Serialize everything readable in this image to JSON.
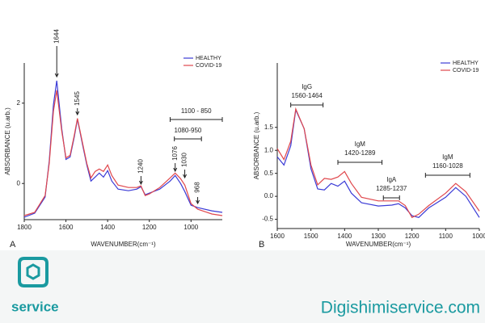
{
  "chart_data": [
    {
      "type": "line",
      "panel": "A",
      "xlabel": "WAVENUMBER(cm⁻¹)",
      "ylabel": "ABSORBANCE (u.arb.)",
      "x": [
        1800,
        1750,
        1700,
        1680,
        1660,
        1644,
        1620,
        1600,
        1580,
        1560,
        1545,
        1520,
        1500,
        1480,
        1460,
        1440,
        1420,
        1400,
        1380,
        1350,
        1300,
        1260,
        1240,
        1220,
        1200,
        1150,
        1100,
        1076,
        1050,
        1030,
        1000,
        968,
        900,
        850
      ],
      "series": [
        {
          "name": "HEALTHY",
          "color": "#3b3bd6",
          "values": [
            -0.84,
            -0.74,
            -0.34,
            0.56,
            1.96,
            2.56,
            1.36,
            0.6,
            0.66,
            1.16,
            1.6,
            0.96,
            0.46,
            0.06,
            0.16,
            0.26,
            0.16,
            0.32,
            0.06,
            -0.14,
            -0.18,
            -0.14,
            -0.08,
            -0.28,
            -0.24,
            -0.14,
            0.06,
            0.2,
            0,
            -0.2,
            -0.54,
            -0.6,
            -0.68,
            -0.72
          ]
        },
        {
          "name": "COVID-19",
          "color": "#e0474c",
          "values": [
            -0.8,
            -0.72,
            -0.3,
            0.5,
            1.8,
            2.32,
            1.3,
            0.64,
            0.7,
            1.2,
            1.62,
            1.0,
            0.5,
            0.14,
            0.3,
            0.36,
            0.3,
            0.46,
            0.2,
            -0.04,
            -0.1,
            -0.1,
            -0.06,
            -0.3,
            -0.26,
            -0.1,
            0.14,
            0.26,
            0.12,
            -0.04,
            -0.5,
            -0.64,
            -0.76,
            -0.8
          ]
        }
      ],
      "xlim": [
        1800,
        850
      ],
      "xticks": [
        1800,
        1600,
        1400,
        1200,
        1000
      ],
      "ylim": [
        -0.9,
        3
      ],
      "yticks": [
        0,
        2
      ],
      "legend": "upper right",
      "annotations": [
        {
          "text": "1644",
          "x": 1644
        },
        {
          "text": "1545",
          "x": 1545
        },
        {
          "text": "1240",
          "x": 1240
        },
        {
          "text": "1076",
          "x": 1076
        },
        {
          "text": "1030",
          "x": 1030
        },
        {
          "text": "968",
          "x": 968
        },
        {
          "text": "1100 - 850",
          "x": [
            1100,
            850
          ]
        },
        {
          "text": "1080-950",
          "x": [
            1080,
            950
          ]
        }
      ]
    },
    {
      "type": "line",
      "panel": "B",
      "xlabel": "WAVENUMBER(cm⁻¹)",
      "ylabel": "ABSORBANCE (u.arb.)",
      "x": [
        1600,
        1580,
        1560,
        1545,
        1520,
        1500,
        1480,
        1460,
        1440,
        1420,
        1400,
        1380,
        1350,
        1300,
        1260,
        1240,
        1220,
        1200,
        1180,
        1150,
        1100,
        1070,
        1040,
        1000
      ],
      "series": [
        {
          "name": "HEALTHY",
          "color": "#3b3bd6",
          "values": [
            0.86,
            0.68,
            1.1,
            1.88,
            1.47,
            0.6,
            0.16,
            0.14,
            0.28,
            0.22,
            0.33,
            0.07,
            -0.14,
            -0.21,
            -0.19,
            -0.16,
            -0.25,
            -0.42,
            -0.46,
            -0.25,
            -0.02,
            0.19,
            0.0,
            -0.46
          ]
        },
        {
          "name": "COVID-19",
          "color": "#e0474c",
          "values": [
            1.04,
            0.8,
            1.2,
            1.9,
            1.47,
            0.68,
            0.25,
            0.39,
            0.37,
            0.42,
            0.54,
            0.28,
            -0.02,
            -0.1,
            -0.1,
            -0.1,
            -0.2,
            -0.46,
            -0.39,
            -0.2,
            0.07,
            0.28,
            0.1,
            -0.32
          ]
        }
      ],
      "xlim": [
        1600,
        1000
      ],
      "xticks": [
        1600,
        1500,
        1400,
        1300,
        1200,
        1100,
        1000
      ],
      "ylim": [
        -0.7,
        2.9
      ],
      "yticks": [
        -0.5,
        {
          "value": 0,
          "label": "0.0"
        },
        0.5,
        {
          "value": 1,
          "label": "1.0"
        },
        1.5
      ],
      "legend": "upper right",
      "annotations": [
        {
          "text": [
            "IgG",
            "1560-1464"
          ],
          "x": [
            1560,
            1464
          ]
        },
        {
          "text": [
            "IgM",
            "1420-1289"
          ],
          "x": [
            1420,
            1289
          ]
        },
        {
          "text": [
            "IgA",
            "1285-1237"
          ],
          "x": [
            1285,
            1237
          ]
        },
        {
          "text": [
            "IgM",
            "1160-1028"
          ],
          "x": [
            1160,
            1028
          ]
        }
      ]
    }
  ],
  "branding": {
    "logo_text": "service",
    "website": "Digishimiservice.com"
  }
}
